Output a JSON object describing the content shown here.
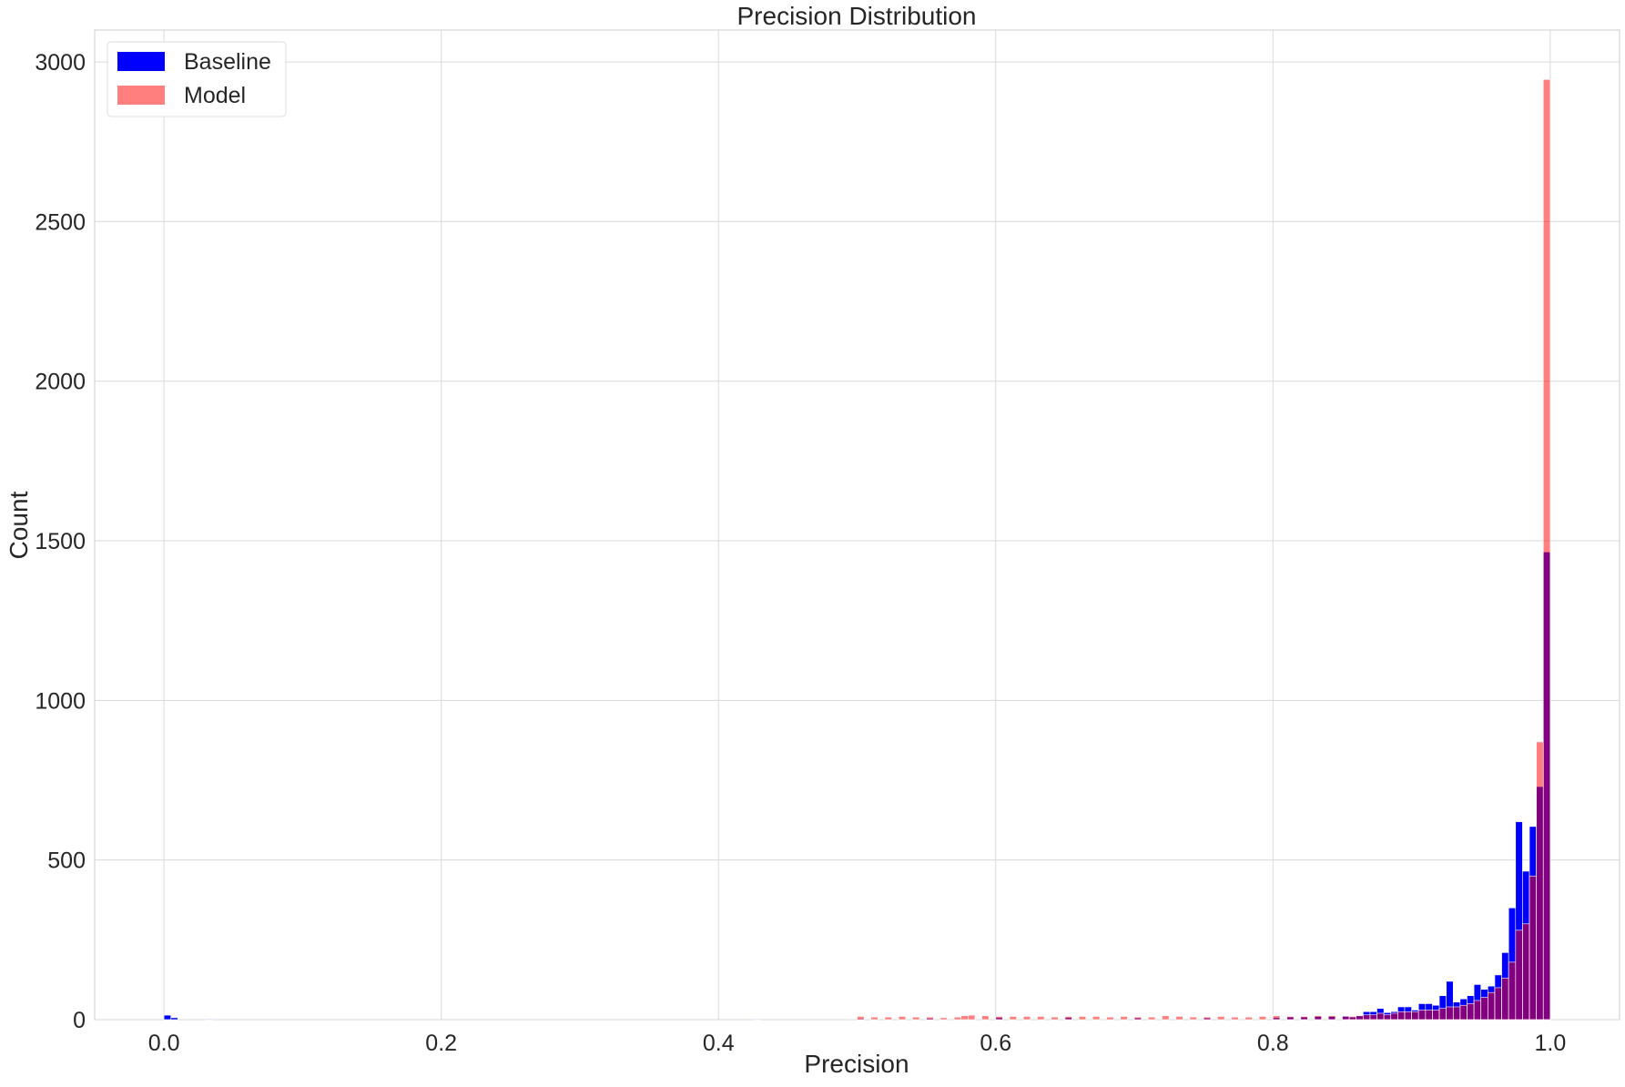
{
  "chart_data": {
    "type": "bar",
    "title": "Precision Distribution",
    "xlabel": "Precision",
    "ylabel": "Count",
    "xlim": [
      -0.05,
      1.05
    ],
    "ylim": [
      0,
      3100
    ],
    "grid": true,
    "legend_position": "top-left",
    "bin_width": 0.005,
    "x_ticks": [
      0.0,
      0.2,
      0.4,
      0.6,
      0.8,
      1.0
    ],
    "x_tick_labels": [
      "0.0",
      "0.2",
      "0.4",
      "0.6",
      "0.8",
      "1.0"
    ],
    "y_ticks": [
      0,
      500,
      1000,
      1500,
      2000,
      2500,
      3000
    ],
    "y_tick_labels": [
      "0",
      "500",
      "1000",
      "1500",
      "2000",
      "2500",
      "3000"
    ],
    "series": [
      {
        "name": "Baseline",
        "color": "#0000ff",
        "bins": [
          [
            0.0,
            14
          ],
          [
            0.005,
            6
          ],
          [
            0.03,
            2
          ],
          [
            0.425,
            2
          ],
          [
            0.5,
            3
          ],
          [
            0.55,
            4
          ],
          [
            0.6,
            6
          ],
          [
            0.65,
            6
          ],
          [
            0.7,
            5
          ],
          [
            0.75,
            5
          ],
          [
            0.8,
            6
          ],
          [
            0.81,
            8
          ],
          [
            0.82,
            8
          ],
          [
            0.83,
            10
          ],
          [
            0.84,
            10
          ],
          [
            0.85,
            12
          ],
          [
            0.855,
            8
          ],
          [
            0.86,
            12
          ],
          [
            0.865,
            25
          ],
          [
            0.87,
            25
          ],
          [
            0.875,
            35
          ],
          [
            0.88,
            22
          ],
          [
            0.885,
            25
          ],
          [
            0.89,
            40
          ],
          [
            0.895,
            40
          ],
          [
            0.9,
            30
          ],
          [
            0.905,
            50
          ],
          [
            0.91,
            50
          ],
          [
            0.915,
            45
          ],
          [
            0.92,
            75
          ],
          [
            0.925,
            120
          ],
          [
            0.93,
            55
          ],
          [
            0.935,
            65
          ],
          [
            0.94,
            75
          ],
          [
            0.945,
            110
          ],
          [
            0.95,
            95
          ],
          [
            0.955,
            105
          ],
          [
            0.96,
            140
          ],
          [
            0.965,
            210
          ],
          [
            0.97,
            350
          ],
          [
            0.975,
            620
          ],
          [
            0.98,
            465
          ],
          [
            0.985,
            605
          ],
          [
            0.99,
            730
          ],
          [
            0.995,
            1465
          ]
        ]
      },
      {
        "name": "Model",
        "color": "#ff0000",
        "opacity": 0.5,
        "bins": [
          [
            0.5,
            10
          ],
          [
            0.51,
            8
          ],
          [
            0.52,
            8
          ],
          [
            0.53,
            10
          ],
          [
            0.54,
            8
          ],
          [
            0.55,
            8
          ],
          [
            0.56,
            6
          ],
          [
            0.57,
            8
          ],
          [
            0.575,
            12
          ],
          [
            0.58,
            14
          ],
          [
            0.59,
            12
          ],
          [
            0.6,
            10
          ],
          [
            0.61,
            10
          ],
          [
            0.62,
            10
          ],
          [
            0.63,
            10
          ],
          [
            0.64,
            8
          ],
          [
            0.65,
            10
          ],
          [
            0.66,
            10
          ],
          [
            0.67,
            10
          ],
          [
            0.68,
            8
          ],
          [
            0.69,
            10
          ],
          [
            0.7,
            8
          ],
          [
            0.71,
            8
          ],
          [
            0.72,
            12
          ],
          [
            0.73,
            10
          ],
          [
            0.74,
            8
          ],
          [
            0.75,
            8
          ],
          [
            0.76,
            10
          ],
          [
            0.77,
            8
          ],
          [
            0.78,
            8
          ],
          [
            0.79,
            10
          ],
          [
            0.8,
            12
          ],
          [
            0.81,
            10
          ],
          [
            0.82,
            10
          ],
          [
            0.83,
            12
          ],
          [
            0.84,
            12
          ],
          [
            0.85,
            10
          ],
          [
            0.855,
            10
          ],
          [
            0.86,
            12
          ],
          [
            0.865,
            15
          ],
          [
            0.87,
            15
          ],
          [
            0.875,
            20
          ],
          [
            0.88,
            15
          ],
          [
            0.885,
            20
          ],
          [
            0.89,
            25
          ],
          [
            0.895,
            25
          ],
          [
            0.9,
            25
          ],
          [
            0.905,
            30
          ],
          [
            0.91,
            30
          ],
          [
            0.915,
            30
          ],
          [
            0.92,
            35
          ],
          [
            0.925,
            40
          ],
          [
            0.93,
            40
          ],
          [
            0.935,
            45
          ],
          [
            0.94,
            50
          ],
          [
            0.945,
            60
          ],
          [
            0.95,
            70
          ],
          [
            0.955,
            85
          ],
          [
            0.96,
            100
          ],
          [
            0.965,
            130
          ],
          [
            0.97,
            180
          ],
          [
            0.975,
            280
          ],
          [
            0.98,
            300
          ],
          [
            0.985,
            450
          ],
          [
            0.99,
            870
          ],
          [
            0.995,
            2945
          ]
        ]
      }
    ]
  }
}
